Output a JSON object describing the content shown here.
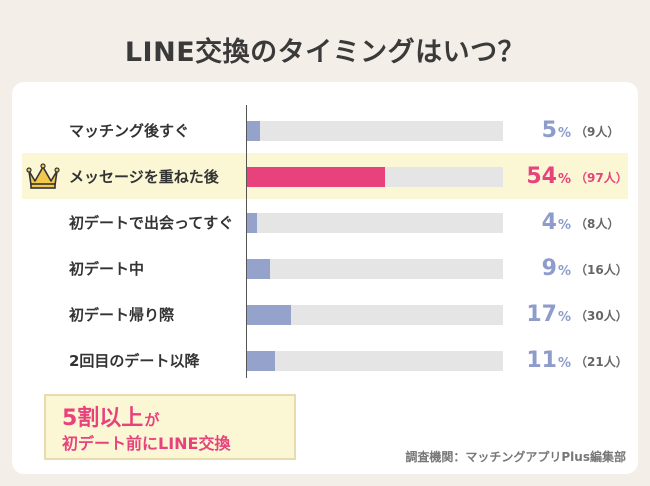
{
  "title": "LINE交換のタイミングはいつ？",
  "colors": {
    "highlight": "#e8427c",
    "normal": "#95a3cc",
    "normal_text": "#8d9ccb",
    "track": "#e5e5e5",
    "background": "#f3efe8"
  },
  "chart_data": {
    "type": "bar",
    "orientation": "horizontal",
    "title": "LINE交換のタイミングはいつ？",
    "xlim": [
      0,
      100
    ],
    "unit": "%",
    "categories": [
      "マッチング後すぐ",
      "メッセージを重ねた後",
      "初デートで出会ってすぐ",
      "初デート中",
      "初デート帰り際",
      "2回目のデート以降"
    ],
    "values": [
      5,
      54,
      4,
      9,
      17,
      11
    ],
    "counts": [
      "（9人）",
      "（97人）",
      "（8人）",
      "（16人）",
      "（30人）",
      "（21人）"
    ],
    "highlight_index": 1
  },
  "crown_icon": "crown-icon",
  "callout": {
    "line1_big": "5割以上",
    "line1_small": "が",
    "line2": "初デート前にLINE交換"
  },
  "source": "調査機関：マッチングアプリPlus編集部"
}
